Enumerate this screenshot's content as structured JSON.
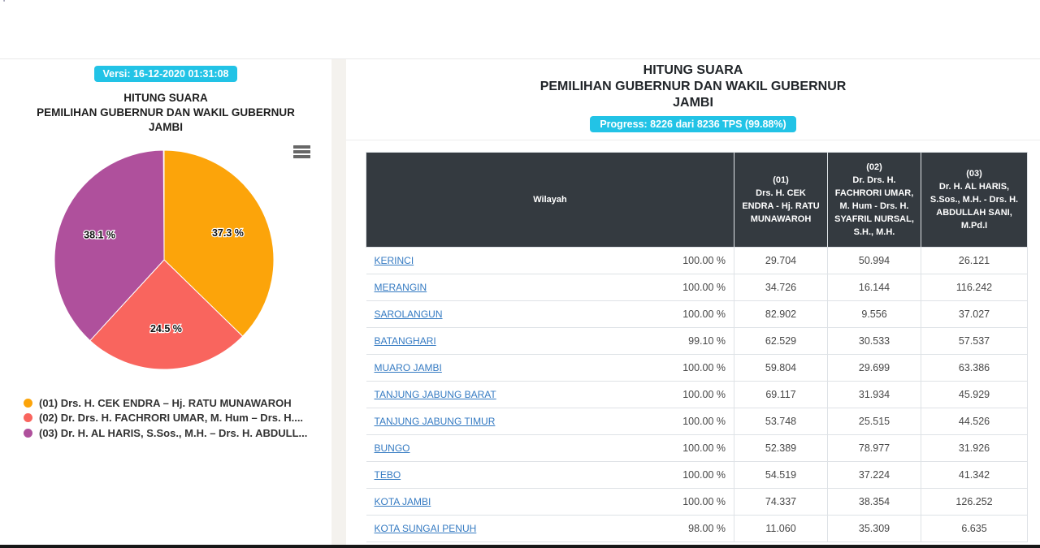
{
  "page": {
    "stray_mark": "'",
    "colors": {
      "accent_cyan": "#22c3e6",
      "table_header_dark": "#343a40",
      "link_blue": "#347ac2",
      "pie_orange": "#fca40a",
      "pie_red": "#f9655e",
      "pie_purple": "#af509c"
    }
  },
  "left_panel": {
    "version_badge": "Versi: 16-12-2020 01:31:08",
    "title_lines": [
      "HITUNG SUARA",
      "PEMILIHAN GUBERNUR DAN WAKIL GUBERNUR",
      "JAMBI"
    ],
    "legend": [
      {
        "color": "#fca40a",
        "label": "(01) Drs. H. CEK ENDRA – Hj. RATU MUNAWAROH"
      },
      {
        "color": "#f9655e",
        "label": "(02) Dr. Drs. H. FACHRORI UMAR, M. Hum – Drs. H...."
      },
      {
        "color": "#af509c",
        "label": "(03) Dr. H. AL HARIS, S.Sos., M.H. – Drs. H. ABDULL..."
      }
    ]
  },
  "chart_data": {
    "type": "pie",
    "title": "HITUNG SUARA PEMILIHAN GUBERNUR DAN WAKIL GUBERNUR JAMBI",
    "legend_position": "bottom-left",
    "start_angle_deg": 0,
    "slices": [
      {
        "name": "(01) Drs. H. CEK ENDRA – Hj. RATU MUNAWAROH",
        "value": 37.3,
        "label": "37.3 %",
        "color": "#fca40a"
      },
      {
        "name": "(02) Dr. Drs. H. FACHRORI UMAR, M. Hum – Drs. H. SYAFRIL NURSAL, S.H., M.H.",
        "value": 24.5,
        "label": "24.5 %",
        "color": "#f9655e"
      },
      {
        "name": "(03) Dr. H. AL HARIS, S.Sos., M.H. – Drs. H. ABDULLAH SANI, M.Pd.I",
        "value": 38.1,
        "label": "38.1 %",
        "color": "#af509c"
      }
    ]
  },
  "right_panel": {
    "title_lines": [
      "HITUNG SUARA",
      "PEMILIHAN GUBERNUR DAN WAKIL GUBERNUR",
      "JAMBI"
    ],
    "progress_badge": "Progress: 8226 dari 8236 TPS (99.88%)",
    "table": {
      "headers": {
        "wilayah": "Wilayah",
        "c1": {
          "num": "(01)",
          "name": "Drs. H. CEK ENDRA - Hj. RATU MUNAWAROH"
        },
        "c2": {
          "num": "(02)",
          "name": "Dr. Drs. H. FACHRORI UMAR, M. Hum - Drs. H. SYAFRIL NURSAL, S.H., M.H."
        },
        "c3": {
          "num": "(03)",
          "name": "Dr. H. AL HARIS, S.Sos., M.H. - Drs. H. ABDULLAH SANI, M.Pd.I"
        }
      },
      "rows": [
        {
          "region": "KERINCI",
          "percent": "100.00 %",
          "v1": "29.704",
          "v2": "50.994",
          "v3": "26.121"
        },
        {
          "region": "MERANGIN",
          "percent": "100.00 %",
          "v1": "34.726",
          "v2": "16.144",
          "v3": "116.242"
        },
        {
          "region": "SAROLANGUN",
          "percent": "100.00 %",
          "v1": "82.902",
          "v2": "9.556",
          "v3": "37.027"
        },
        {
          "region": "BATANGHARI",
          "percent": "99.10 %",
          "v1": "62.529",
          "v2": "30.533",
          "v3": "57.537"
        },
        {
          "region": "MUARO JAMBI",
          "percent": "100.00 %",
          "v1": "59.804",
          "v2": "29.699",
          "v3": "63.386"
        },
        {
          "region": "TANJUNG JABUNG BARAT",
          "percent": "100.00 %",
          "v1": "69.117",
          "v2": "31.934",
          "v3": "45.929"
        },
        {
          "region": "TANJUNG JABUNG TIMUR",
          "percent": "100.00 %",
          "v1": "53.748",
          "v2": "25.515",
          "v3": "44.526"
        },
        {
          "region": "BUNGO",
          "percent": "100.00 %",
          "v1": "52.389",
          "v2": "78.977",
          "v3": "31.926"
        },
        {
          "region": "TEBO",
          "percent": "100.00 %",
          "v1": "54.519",
          "v2": "37.224",
          "v3": "41.342"
        },
        {
          "region": "KOTA JAMBI",
          "percent": "100.00 %",
          "v1": "74.337",
          "v2": "38.354",
          "v3": "126.252"
        },
        {
          "region": "KOTA SUNGAI PENUH",
          "percent": "98.00 %",
          "v1": "11.060",
          "v2": "35.309",
          "v3": "6.635"
        }
      ]
    }
  }
}
